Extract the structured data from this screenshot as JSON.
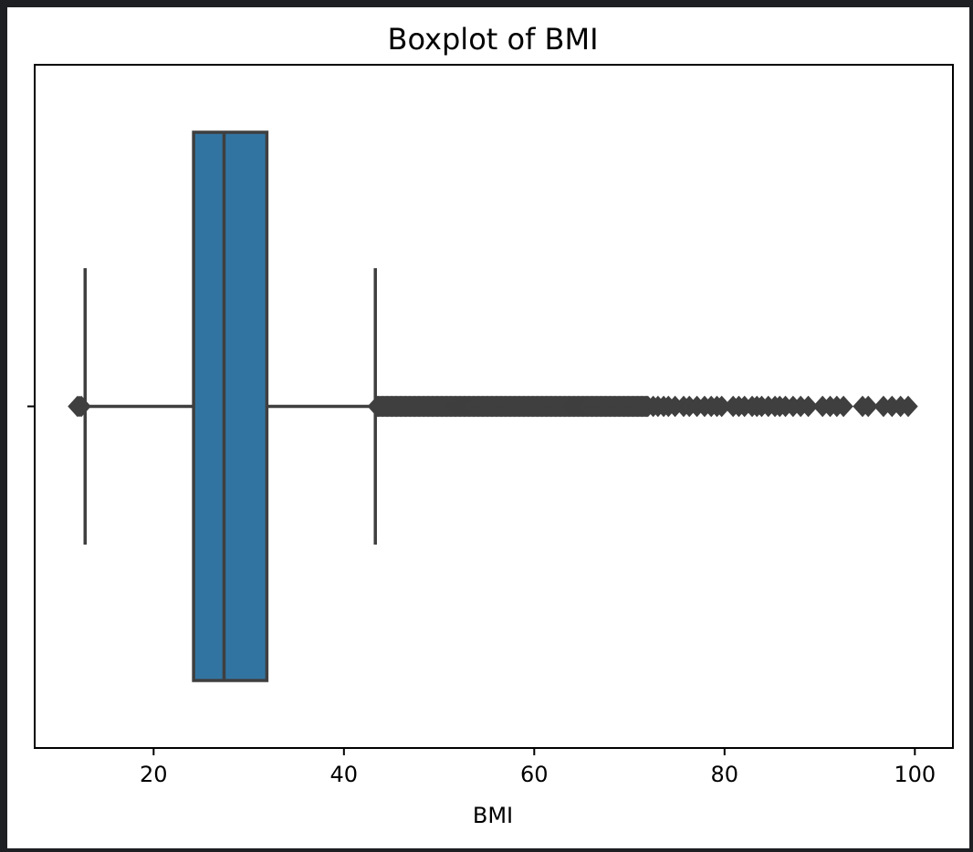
{
  "colors": {
    "page_background": "#1e1f22",
    "figure_background": "#ffffff",
    "box_fill": "#3274a1",
    "box_edge": "#3f3f3f",
    "outlier": "#3f3f3f"
  },
  "chart_data": {
    "type": "box",
    "orientation": "horizontal",
    "title": "Boxplot of BMI",
    "xlabel": "BMI",
    "ylabel": "",
    "xlim": [
      7.5,
      104
    ],
    "xticks": [
      20,
      40,
      60,
      80,
      100
    ],
    "grid": false,
    "legend": "none",
    "box": {
      "whisker_low": 12.8,
      "q1": 24.2,
      "median": 27.4,
      "q3": 31.9,
      "whisker_high": 43.3
    },
    "outliers_low": [
      12.0,
      12.2,
      12.4
    ],
    "outliers_dense_range_high": [
      43.5,
      72.0
    ],
    "outliers_high": [
      72.5,
      73.0,
      73.6,
      74.1,
      74.8,
      75.7,
      76.3,
      77.1,
      77.9,
      78.6,
      79.2,
      79.7,
      80.9,
      81.5,
      82.1,
      82.9,
      83.4,
      83.9,
      84.6,
      85.3,
      85.8,
      86.4,
      87.2,
      88.0,
      88.8,
      90.3,
      91.1,
      91.8,
      92.5,
      94.5,
      95.1,
      96.7,
      97.6,
      98.5,
      99.3
    ]
  }
}
